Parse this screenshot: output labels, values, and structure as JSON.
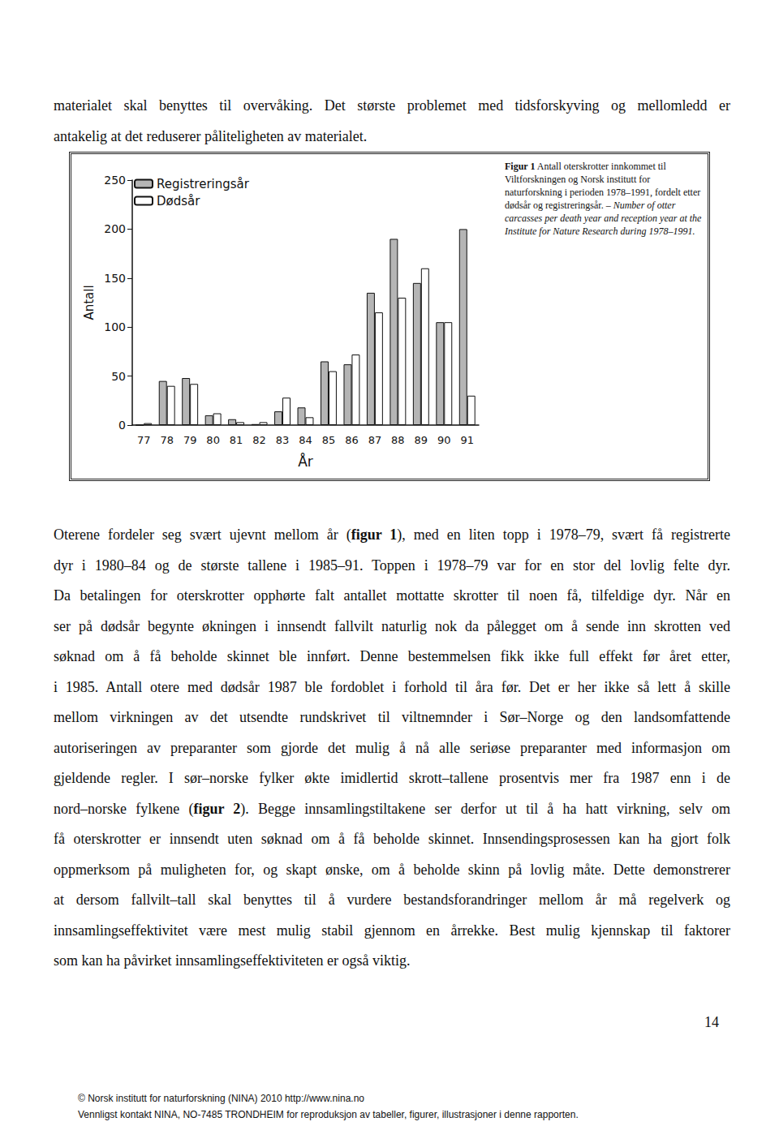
{
  "page": {
    "intro": [
      "materialet skal benyttes til overvåking. Det største problemet med tidsforskyving og mellomledd er",
      "antakelig at det reduserer påliteligheten av materialet."
    ],
    "figure_caption": [
      {
        "text": "Figur 1",
        "bold": true
      },
      {
        "text": " Antall oterskrotter innkommet til Viltforskningen og Norsk institutt for naturforskning i perioden 1978–1991, fordelt etter dødsår og registreringsår. – "
      },
      {
        "text": "Number of otter carcasses per death year and reception year at the Institute for Nature Research during 1978–1991.",
        "italic": true
      }
    ],
    "body": [
      [
        {
          "text": "Oterene fordeler seg svært ujevnt mellom år ("
        },
        {
          "text": "figur 1",
          "bold": true
        },
        {
          "text": "), med en liten topp i 1978–79, svært få registrerte"
        }
      ],
      [
        {
          "text": "dyr i 1980–84 og de største tallene i 1985–91. Toppen i 1978–79 var for en stor del lovlig felte dyr."
        }
      ],
      [
        {
          "text": "Da betalingen for oterskrotter opphørte falt antallet mottatte skrotter til noen få, tilfeldige dyr. Når en"
        }
      ],
      [
        {
          "text": "ser på dødsår begynte økningen i innsendt fallvilt naturlig nok da pålegget om å sende inn skrotten ved"
        }
      ],
      [
        {
          "text": "søknad om å få beholde skinnet ble innført. Denne bestemmelsen fikk ikke full effekt før året etter,"
        }
      ],
      [
        {
          "text": "i 1985. Antall otere med dødsår 1987 ble fordoblet i forhold til åra før. Det er her ikke så lett å skille"
        }
      ],
      [
        {
          "text": "mellom virkningen av det utsendte rundskrivet til viltnemnder i Sør–Norge og den landsomfattende"
        }
      ],
      [
        {
          "text": "autoriseringen av preparanter som gjorde det mulig å nå alle seriøse preparanter med informasjon om"
        }
      ],
      [
        {
          "text": "gjeldende regler. I sør–norske fylker økte imidlertid skrott–tallene prosentvis mer fra 1987 enn i de"
        }
      ],
      [
        {
          "text": "nord–norske fylkene ("
        },
        {
          "text": "figur 2",
          "bold": true
        },
        {
          "text": "). Begge innsamlingstiltakene ser derfor ut til å ha hatt virkning, selv om"
        }
      ],
      [
        {
          "text": "få oterskrotter er innsendt uten søknad om å få beholde skinnet. Innsendingsprosessen kan ha gjort folk"
        }
      ],
      [
        {
          "text": "oppmerksom på muligheten for, og skapt ønske, om å beholde skinn på lovlig måte. Dette demonstrerer"
        }
      ],
      [
        {
          "text": "at dersom fallvilt–tall skal benyttes til å vurdere bestandsforandringer mellom år må regelverk og"
        }
      ],
      [
        {
          "text": "innsamlingseffektivitet være mest mulig stabil gjennom en årrekke. Best mulig kjennskap til faktorer"
        }
      ],
      [
        {
          "text": "som kan ha påvirket innsamlingseffektiviteten er også viktig."
        }
      ]
    ],
    "page_number": "14",
    "footer": [
      "© Norsk institutt for naturforskning (NINA) 2010 http://www.nina.no",
      "Vennligst kontakt NINA, NO-7485 TRONDHEIM for reproduksjon av tabeller, figurer, illustrasjoner i denne rapporten."
    ]
  },
  "chart_data": {
    "type": "bar",
    "xlabel": "År",
    "ylabel": "Antall",
    "categories": [
      "77",
      "78",
      "79",
      "80",
      "81",
      "82",
      "83",
      "84",
      "85",
      "86",
      "87",
      "88",
      "89",
      "90",
      "91"
    ],
    "series": [
      {
        "name": "Registreringsår",
        "color": "#b5b5b5",
        "values": [
          0,
          45,
          48,
          10,
          6,
          1,
          14,
          18,
          65,
          62,
          135,
          190,
          145,
          105,
          200
        ]
      },
      {
        "name": "Dødsår",
        "color": "#ffffff",
        "values": [
          2,
          40,
          42,
          12,
          3,
          3,
          28,
          8,
          55,
          72,
          115,
          130,
          160,
          105,
          30
        ]
      }
    ],
    "ylim": [
      0,
      250
    ],
    "yticks": [
      0,
      50,
      100,
      150,
      200,
      250
    ],
    "grid": false,
    "legend": "upper left"
  }
}
